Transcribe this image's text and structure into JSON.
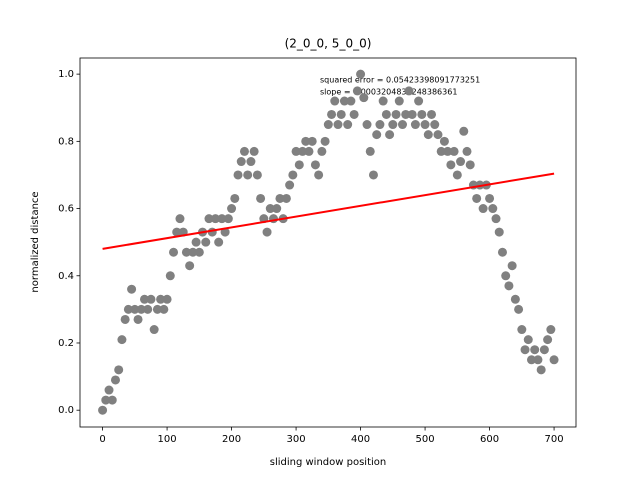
{
  "chart_data": {
    "type": "scatter",
    "title": "(2_0_0, 5_0_0)",
    "x_label": "sliding window position",
    "y_label": "normalized distance",
    "annotations": [
      "squared error = 0.05423398091773251",
      "slope = 0.0003204836248386361"
    ],
    "xlim": [
      -35,
      734
    ],
    "ylim": [
      -0.05,
      1.048
    ],
    "xticks": [
      0,
      100,
      200,
      300,
      400,
      500,
      600,
      700
    ],
    "yticks": [
      {
        "value": 0,
        "label": "0.0"
      },
      0.2,
      0.4,
      0.6,
      0.8,
      {
        "value": 1,
        "label": "1.0"
      }
    ],
    "x": [
      0,
      5,
      10,
      15,
      20,
      25,
      30,
      35,
      40,
      45,
      50,
      55,
      60,
      65,
      70,
      75,
      80,
      85,
      90,
      95,
      100,
      105,
      110,
      115,
      120,
      125,
      130,
      135,
      140,
      145,
      150,
      155,
      160,
      165,
      170,
      175,
      180,
      185,
      190,
      195,
      200,
      205,
      210,
      215,
      220,
      225,
      230,
      235,
      240,
      245,
      250,
      255,
      260,
      265,
      270,
      275,
      280,
      285,
      290,
      295,
      300,
      305,
      310,
      315,
      320,
      325,
      330,
      335,
      340,
      345,
      350,
      355,
      360,
      365,
      370,
      375,
      380,
      385,
      390,
      395,
      400,
      405,
      410,
      415,
      420,
      425,
      430,
      435,
      440,
      445,
      450,
      455,
      460,
      465,
      470,
      475,
      480,
      485,
      490,
      495,
      500,
      505,
      510,
      515,
      520,
      525,
      530,
      535,
      540,
      545,
      550,
      555,
      560,
      565,
      570,
      575,
      580,
      585,
      590,
      595,
      600,
      605,
      610,
      615,
      620,
      625,
      630,
      635,
      640,
      645,
      650,
      655,
      660,
      665,
      670,
      675,
      680,
      685,
      690,
      695,
      700
    ],
    "series": [
      {
        "color": "#808080",
        "values": [
          0.0,
          0.03,
          0.06,
          0.03,
          0.09,
          0.12,
          0.21,
          0.27,
          0.3,
          0.36,
          0.3,
          0.27,
          0.3,
          0.33,
          0.3,
          0.33,
          0.24,
          0.3,
          0.33,
          0.3,
          0.33,
          0.4,
          0.47,
          0.53,
          0.57,
          0.53,
          0.47,
          0.43,
          0.47,
          0.5,
          0.47,
          0.53,
          0.5,
          0.57,
          0.53,
          0.57,
          0.5,
          0.57,
          0.53,
          0.57,
          0.6,
          0.63,
          0.7,
          0.74,
          0.77,
          0.7,
          0.74,
          0.77,
          0.7,
          0.63,
          0.57,
          0.53,
          0.6,
          0.57,
          0.6,
          0.63,
          0.57,
          0.63,
          0.67,
          0.7,
          0.77,
          0.73,
          0.77,
          0.8,
          0.77,
          0.8,
          0.73,
          0.7,
          0.77,
          0.8,
          0.85,
          0.88,
          0.92,
          0.85,
          0.88,
          0.92,
          0.85,
          0.92,
          0.88,
          0.95,
          1.0,
          0.93,
          0.85,
          0.77,
          0.7,
          0.82,
          0.85,
          0.92,
          0.88,
          0.82,
          0.85,
          0.88,
          0.92,
          0.85,
          0.88,
          0.95,
          0.88,
          0.85,
          0.92,
          0.88,
          0.85,
          0.82,
          0.88,
          0.85,
          0.82,
          0.77,
          0.8,
          0.77,
          0.73,
          0.77,
          0.7,
          0.74,
          0.83,
          0.77,
          0.73,
          0.67,
          0.63,
          0.67,
          0.6,
          0.67,
          0.63,
          0.6,
          0.57,
          0.53,
          0.47,
          0.4,
          0.37,
          0.43,
          0.33,
          0.3,
          0.24,
          0.18,
          0.21,
          0.15,
          0.18,
          0.15,
          0.12,
          0.18,
          0.21,
          0.24,
          0.15
        ]
      }
    ],
    "fit": {
      "color": "#ff0000",
      "x": [
        0,
        700
      ],
      "values": [
        0.48,
        0.704
      ]
    }
  }
}
